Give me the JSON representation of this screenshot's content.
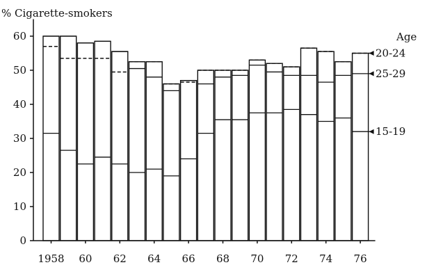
{
  "chart_data": {
    "type": "bar",
    "ylabel": "% Cigarette-smokers",
    "ylim": [
      0,
      65
    ],
    "yticks": [
      0,
      10,
      20,
      30,
      40,
      50,
      60
    ],
    "categories": [
      "1958",
      "1959",
      "1960",
      "1961",
      "1962",
      "1963",
      "1964",
      "1965",
      "1966",
      "1967",
      "1968",
      "1969",
      "1970",
      "1971",
      "1972",
      "1973",
      "1974",
      "1975",
      "1976"
    ],
    "x_tick_labels": [
      "1958",
      "60",
      "62",
      "64",
      "66",
      "68",
      "70",
      "72",
      "74",
      "76"
    ],
    "x_tick_indices": [
      0,
      2,
      4,
      6,
      8,
      10,
      12,
      14,
      16,
      18
    ],
    "legend_title": "Age",
    "series": [
      {
        "name": "15-19",
        "line_style": "solid",
        "values": [
          31.5,
          26.5,
          22.5,
          24.5,
          22.5,
          20,
          21,
          19,
          24,
          31.5,
          35.5,
          35.5,
          37.5,
          37.5,
          38.5,
          37,
          35,
          36,
          32
        ]
      },
      {
        "name": "25-29",
        "line_style": "solid",
        "values": [
          60,
          60,
          58,
          58.5,
          55.5,
          50.5,
          48,
          44,
          47,
          46,
          48,
          48.5,
          51.5,
          49.5,
          48.5,
          48.5,
          46.5,
          48.5,
          49
        ]
      },
      {
        "name": "20-24",
        "line_style": "dashed",
        "values": [
          57,
          53.5,
          53.5,
          53.5,
          49.5,
          52.5,
          52.5,
          46,
          46.5,
          50,
          50,
          50,
          53,
          52,
          51,
          56.5,
          55.5,
          52.5,
          55
        ]
      }
    ]
  }
}
